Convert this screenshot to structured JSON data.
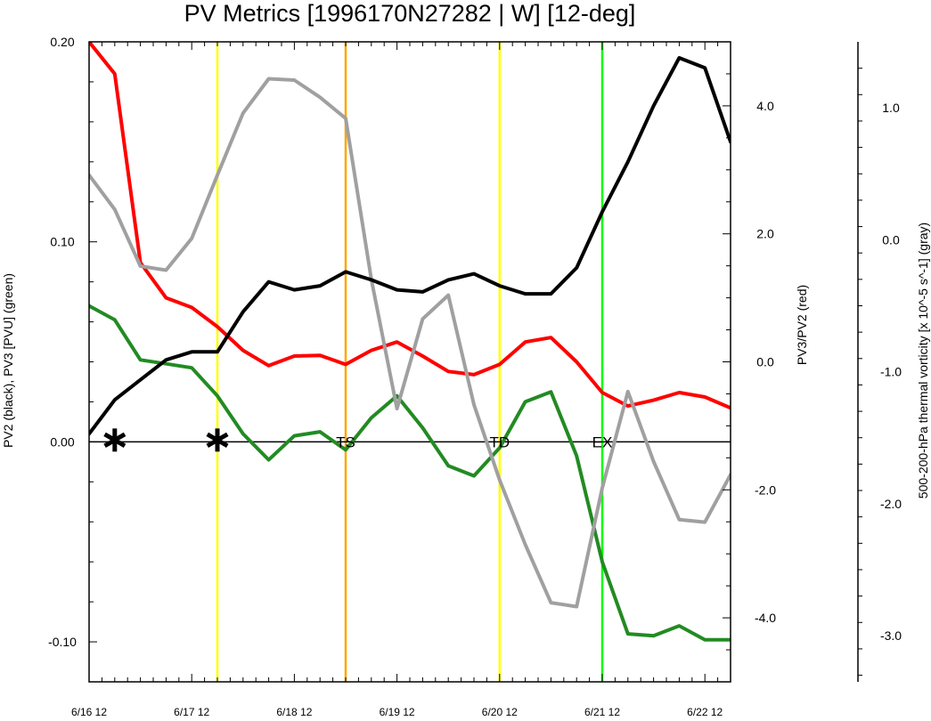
{
  "chart_data": {
    "type": "line",
    "title": "PV Metrics [1996170N27282 | W] [12-deg]",
    "xlabel": "",
    "y_left_label": "PV2 (black), PV3 [PVU] (green)",
    "y_right_label": "PV3/PV2 (red)",
    "y_far_right_label": "500-200-hPa thermal vorticity [x 10^-5 s^-1] (gray)",
    "x_ticks": [
      {
        "x": 0,
        "label": "6/16 12"
      },
      {
        "x": 4,
        "label": "6/17 12"
      },
      {
        "x": 8,
        "label": "6/18 12"
      },
      {
        "x": 12,
        "label": "6/19 12"
      },
      {
        "x": 16,
        "label": "6/20 12"
      },
      {
        "x": 20,
        "label": "6/21 12"
      },
      {
        "x": 24,
        "label": "6/22 12"
      }
    ],
    "xlim": [
      0,
      25
    ],
    "y_left": {
      "ylim": [
        -0.12,
        0.2
      ],
      "ticks": [
        -0.1,
        0.0,
        0.1,
        0.2
      ],
      "tick_labels": [
        "-0.10",
        "0.00",
        "0.10",
        "0.20"
      ]
    },
    "y_right": {
      "ylim": [
        -5.0,
        5.0
      ],
      "ticks": [
        -4,
        -2,
        0,
        2,
        4
      ],
      "tick_labels": [
        "-4.0",
        "-2.0",
        "0.0",
        "2.0",
        "4.0"
      ]
    },
    "y_far_right": {
      "ylim": [
        -3.35,
        1.5
      ],
      "ticks": [
        -3,
        -2,
        -1,
        0,
        1
      ],
      "tick_labels": [
        "-3.0",
        "-2.0",
        "-1.0",
        "0.0",
        "1.0"
      ]
    },
    "x": [
      0,
      1,
      2,
      3,
      4,
      5,
      6,
      7,
      8,
      9,
      10,
      11,
      12,
      13,
      14,
      15,
      16,
      17,
      18,
      19,
      20,
      21,
      22,
      23,
      24,
      25
    ],
    "series": [
      {
        "name": "PV2",
        "axis": "left",
        "color": "#000000",
        "values": [
          0.004,
          0.021,
          0.031,
          0.041,
          0.045,
          0.045,
          0.065,
          0.08,
          0.076,
          0.078,
          0.085,
          0.081,
          0.076,
          0.075,
          0.081,
          0.084,
          0.078,
          0.074,
          0.074,
          0.087,
          0.115,
          0.14,
          0.168,
          0.192,
          0.187,
          0.15
        ]
      },
      {
        "name": "PV3",
        "axis": "left",
        "color": "#228b22",
        "values": [
          0.068,
          0.061,
          0.041,
          0.039,
          0.037,
          0.023,
          0.004,
          -0.009,
          0.003,
          0.005,
          -0.004,
          0.012,
          0.023,
          0.007,
          -0.012,
          -0.017,
          -0.003,
          0.02,
          0.025,
          -0.007,
          -0.06,
          -0.096,
          -0.097,
          -0.092,
          -0.099,
          -0.099
        ]
      },
      {
        "name": "PV3/PV2",
        "axis": "right",
        "color": "#ff0000",
        "values": [
          5.0,
          4.5,
          1.55,
          1.0,
          0.85,
          0.55,
          0.18,
          -0.06,
          0.09,
          0.1,
          -0.04,
          0.18,
          0.31,
          0.09,
          -0.15,
          -0.2,
          -0.04,
          0.31,
          0.38,
          0.0,
          -0.48,
          -0.69,
          -0.6,
          -0.48,
          -0.55,
          -0.72
        ]
      },
      {
        "name": "thermal vorticity",
        "axis": "far_right",
        "color": "#a0a0a0",
        "values": [
          0.49,
          0.23,
          -0.2,
          -0.23,
          0.01,
          0.49,
          0.96,
          1.22,
          1.21,
          1.08,
          0.92,
          -0.3,
          -1.28,
          -0.6,
          -0.42,
          -1.25,
          -1.82,
          -2.31,
          -2.75,
          -2.78,
          -1.88,
          -1.15,
          -1.68,
          -2.12,
          -2.14,
          -1.78
        ]
      }
    ],
    "vertical_lines": [
      {
        "x": 5.0,
        "color": "#ffff00",
        "label": ""
      },
      {
        "x": 10.0,
        "color": "#ffa500",
        "label": "TS"
      },
      {
        "x": 16.0,
        "color": "#ffff00",
        "label": "TD"
      },
      {
        "x": 20.0,
        "color": "#00ff00",
        "label": "EX"
      }
    ],
    "star_markers": [
      1.0,
      5.0
    ],
    "zero_line": true,
    "grid": false,
    "legend": "none"
  }
}
